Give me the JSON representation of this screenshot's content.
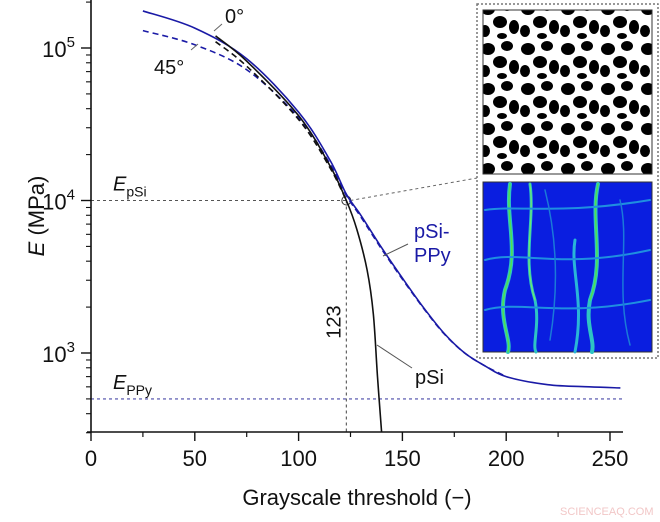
{
  "chart_data": {
    "type": "line",
    "title": "",
    "xlabel": "Grayscale threshold (−)",
    "ylabel_italic": "E",
    "ylabel_unit": " (MPa)",
    "xlim": [
      0,
      255
    ],
    "ylim_log": [
      300,
      205000
    ],
    "yscale": "log",
    "x_ticks": [
      0,
      50,
      100,
      150,
      200,
      250
    ],
    "y_ticks": [
      {
        "base": "10",
        "exp": "3",
        "value": 1000
      },
      {
        "base": "10",
        "exp": "4",
        "value": 10000
      },
      {
        "base": "10",
        "exp": "5",
        "value": 100000
      }
    ],
    "series": [
      {
        "name": "pSi-PPy 0°",
        "color": "#1a1aa6",
        "dash": "solid",
        "x": [
          25,
          50,
          75,
          100,
          115,
          123,
          130,
          140,
          150,
          160,
          170,
          180,
          190,
          200,
          220,
          240,
          255
        ],
        "y": [
          175000,
          135000,
          85000,
          38000,
          18500,
          11000,
          8000,
          4900,
          3100,
          2000,
          1350,
          1000,
          820,
          700,
          620,
          600,
          590
        ]
      },
      {
        "name": "pSi-PPy 45°",
        "color": "#1a1aa6",
        "dash": "dashed",
        "x": [
          25,
          50,
          75,
          100,
          115,
          123,
          130,
          140,
          150,
          160,
          170,
          180,
          190,
          200
        ],
        "y": [
          130000,
          105000,
          72000,
          35000,
          17500,
          10800,
          7800,
          4800,
          3050,
          1980,
          1340,
          1000,
          820,
          700
        ]
      },
      {
        "name": "pSi 0°",
        "color": "#111111",
        "dash": "solid",
        "x": [
          60,
          75,
          100,
          115,
          123,
          128,
          133,
          136,
          138,
          140
        ],
        "y": [
          120000,
          82000,
          36000,
          17000,
          10000,
          6500,
          3500,
          1800,
          700,
          300
        ]
      },
      {
        "name": "pSi 45°",
        "color": "#111111",
        "dash": "dashed",
        "x": [
          60,
          75,
          100,
          115,
          123
        ],
        "y": [
          110000,
          76000,
          34000,
          16500,
          10000
        ]
      }
    ],
    "reference_lines": [
      {
        "label_base": "E",
        "label_sub": "pSi",
        "y": 10000,
        "color": "#555555"
      },
      {
        "label_base": "E",
        "label_sub": "PPy",
        "y": 500,
        "color": "#4a4aa8"
      }
    ],
    "vertical_marker": {
      "x": 123,
      "label": "123"
    },
    "annotations": [
      {
        "text": "0°"
      },
      {
        "text": "45°"
      },
      {
        "text": "pSi-",
        "color": "#1a1aa6"
      },
      {
        "text": "PPy",
        "color": "#1a1aa6"
      },
      {
        "text": "pSi",
        "color": "#111111"
      }
    ],
    "insets": [
      {
        "name": "binary-microstructure",
        "description": "black and white thresholded porous structure"
      },
      {
        "name": "stress-field",
        "description": "blue background with cyan/green network of load paths"
      }
    ]
  },
  "watermark": "SCIENCEAQ.COM"
}
